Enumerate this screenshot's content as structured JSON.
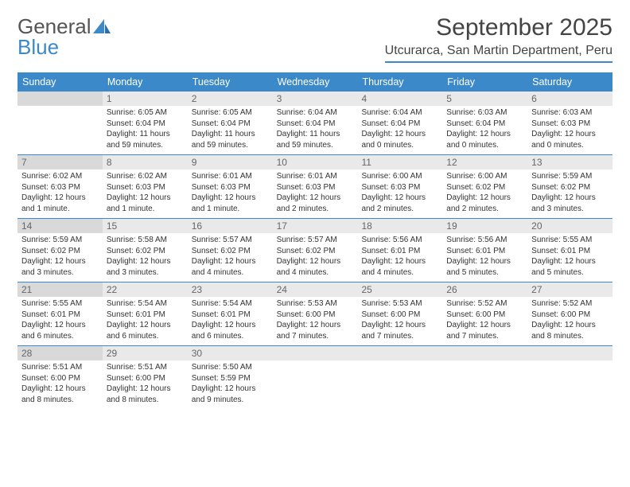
{
  "brand": {
    "name1": "General",
    "name2": "Blue"
  },
  "header": {
    "month_title": "September 2025",
    "location": "Utcurarca, San Martin Department, Peru"
  },
  "colors": {
    "accent": "#3b89c9",
    "header_bg": "#3b89c9",
    "daynum_bg": "#e9e9e9",
    "daynum_bg_sunday": "#d9d9d9",
    "text": "#333333",
    "border": "#3b89c9"
  },
  "day_headers": [
    "Sunday",
    "Monday",
    "Tuesday",
    "Wednesday",
    "Thursday",
    "Friday",
    "Saturday"
  ],
  "weeks": [
    [
      {
        "day": "",
        "sunrise": "",
        "sunset": "",
        "daylight": ""
      },
      {
        "day": "1",
        "sunrise": "Sunrise: 6:05 AM",
        "sunset": "Sunset: 6:04 PM",
        "daylight": "Daylight: 11 hours and 59 minutes."
      },
      {
        "day": "2",
        "sunrise": "Sunrise: 6:05 AM",
        "sunset": "Sunset: 6:04 PM",
        "daylight": "Daylight: 11 hours and 59 minutes."
      },
      {
        "day": "3",
        "sunrise": "Sunrise: 6:04 AM",
        "sunset": "Sunset: 6:04 PM",
        "daylight": "Daylight: 11 hours and 59 minutes."
      },
      {
        "day": "4",
        "sunrise": "Sunrise: 6:04 AM",
        "sunset": "Sunset: 6:04 PM",
        "daylight": "Daylight: 12 hours and 0 minutes."
      },
      {
        "day": "5",
        "sunrise": "Sunrise: 6:03 AM",
        "sunset": "Sunset: 6:04 PM",
        "daylight": "Daylight: 12 hours and 0 minutes."
      },
      {
        "day": "6",
        "sunrise": "Sunrise: 6:03 AM",
        "sunset": "Sunset: 6:03 PM",
        "daylight": "Daylight: 12 hours and 0 minutes."
      }
    ],
    [
      {
        "day": "7",
        "sunrise": "Sunrise: 6:02 AM",
        "sunset": "Sunset: 6:03 PM",
        "daylight": "Daylight: 12 hours and 1 minute."
      },
      {
        "day": "8",
        "sunrise": "Sunrise: 6:02 AM",
        "sunset": "Sunset: 6:03 PM",
        "daylight": "Daylight: 12 hours and 1 minute."
      },
      {
        "day": "9",
        "sunrise": "Sunrise: 6:01 AM",
        "sunset": "Sunset: 6:03 PM",
        "daylight": "Daylight: 12 hours and 1 minute."
      },
      {
        "day": "10",
        "sunrise": "Sunrise: 6:01 AM",
        "sunset": "Sunset: 6:03 PM",
        "daylight": "Daylight: 12 hours and 2 minutes."
      },
      {
        "day": "11",
        "sunrise": "Sunrise: 6:00 AM",
        "sunset": "Sunset: 6:03 PM",
        "daylight": "Daylight: 12 hours and 2 minutes."
      },
      {
        "day": "12",
        "sunrise": "Sunrise: 6:00 AM",
        "sunset": "Sunset: 6:02 PM",
        "daylight": "Daylight: 12 hours and 2 minutes."
      },
      {
        "day": "13",
        "sunrise": "Sunrise: 5:59 AM",
        "sunset": "Sunset: 6:02 PM",
        "daylight": "Daylight: 12 hours and 3 minutes."
      }
    ],
    [
      {
        "day": "14",
        "sunrise": "Sunrise: 5:59 AM",
        "sunset": "Sunset: 6:02 PM",
        "daylight": "Daylight: 12 hours and 3 minutes."
      },
      {
        "day": "15",
        "sunrise": "Sunrise: 5:58 AM",
        "sunset": "Sunset: 6:02 PM",
        "daylight": "Daylight: 12 hours and 3 minutes."
      },
      {
        "day": "16",
        "sunrise": "Sunrise: 5:57 AM",
        "sunset": "Sunset: 6:02 PM",
        "daylight": "Daylight: 12 hours and 4 minutes."
      },
      {
        "day": "17",
        "sunrise": "Sunrise: 5:57 AM",
        "sunset": "Sunset: 6:02 PM",
        "daylight": "Daylight: 12 hours and 4 minutes."
      },
      {
        "day": "18",
        "sunrise": "Sunrise: 5:56 AM",
        "sunset": "Sunset: 6:01 PM",
        "daylight": "Daylight: 12 hours and 4 minutes."
      },
      {
        "day": "19",
        "sunrise": "Sunrise: 5:56 AM",
        "sunset": "Sunset: 6:01 PM",
        "daylight": "Daylight: 12 hours and 5 minutes."
      },
      {
        "day": "20",
        "sunrise": "Sunrise: 5:55 AM",
        "sunset": "Sunset: 6:01 PM",
        "daylight": "Daylight: 12 hours and 5 minutes."
      }
    ],
    [
      {
        "day": "21",
        "sunrise": "Sunrise: 5:55 AM",
        "sunset": "Sunset: 6:01 PM",
        "daylight": "Daylight: 12 hours and 6 minutes."
      },
      {
        "day": "22",
        "sunrise": "Sunrise: 5:54 AM",
        "sunset": "Sunset: 6:01 PM",
        "daylight": "Daylight: 12 hours and 6 minutes."
      },
      {
        "day": "23",
        "sunrise": "Sunrise: 5:54 AM",
        "sunset": "Sunset: 6:01 PM",
        "daylight": "Daylight: 12 hours and 6 minutes."
      },
      {
        "day": "24",
        "sunrise": "Sunrise: 5:53 AM",
        "sunset": "Sunset: 6:00 PM",
        "daylight": "Daylight: 12 hours and 7 minutes."
      },
      {
        "day": "25",
        "sunrise": "Sunrise: 5:53 AM",
        "sunset": "Sunset: 6:00 PM",
        "daylight": "Daylight: 12 hours and 7 minutes."
      },
      {
        "day": "26",
        "sunrise": "Sunrise: 5:52 AM",
        "sunset": "Sunset: 6:00 PM",
        "daylight": "Daylight: 12 hours and 7 minutes."
      },
      {
        "day": "27",
        "sunrise": "Sunrise: 5:52 AM",
        "sunset": "Sunset: 6:00 PM",
        "daylight": "Daylight: 12 hours and 8 minutes."
      }
    ],
    [
      {
        "day": "28",
        "sunrise": "Sunrise: 5:51 AM",
        "sunset": "Sunset: 6:00 PM",
        "daylight": "Daylight: 12 hours and 8 minutes."
      },
      {
        "day": "29",
        "sunrise": "Sunrise: 5:51 AM",
        "sunset": "Sunset: 6:00 PM",
        "daylight": "Daylight: 12 hours and 8 minutes."
      },
      {
        "day": "30",
        "sunrise": "Sunrise: 5:50 AM",
        "sunset": "Sunset: 5:59 PM",
        "daylight": "Daylight: 12 hours and 9 minutes."
      },
      {
        "day": "",
        "sunrise": "",
        "sunset": "",
        "daylight": ""
      },
      {
        "day": "",
        "sunrise": "",
        "sunset": "",
        "daylight": ""
      },
      {
        "day": "",
        "sunrise": "",
        "sunset": "",
        "daylight": ""
      },
      {
        "day": "",
        "sunrise": "",
        "sunset": "",
        "daylight": ""
      }
    ]
  ]
}
